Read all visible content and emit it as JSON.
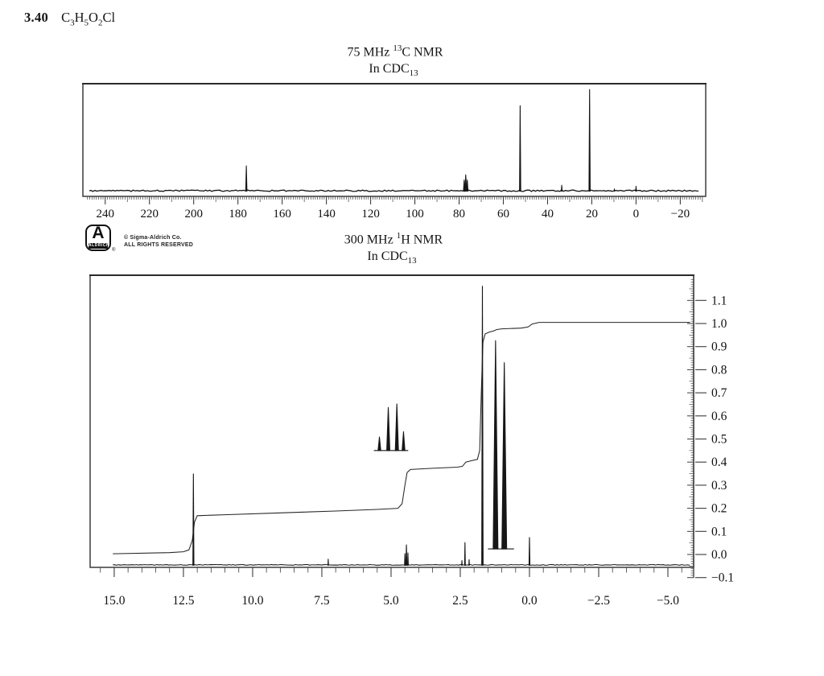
{
  "page": {
    "problem_number": "3.40",
    "formula_parts": [
      {
        "t": "C",
        "sub": "3"
      },
      {
        "t": "H",
        "sub": "5"
      },
      {
        "t": "O",
        "sub": "2"
      },
      {
        "t": "Cl",
        "sub": ""
      }
    ]
  },
  "logo": {
    "letter": "A",
    "name": "ALDRICH",
    "reg": "®",
    "credit_line1": "© Sigma-Aldrich Co.",
    "credit_line2": "ALL RIGHTS RESERVED"
  },
  "chart_data": [
    {
      "id": "c13",
      "type": "line",
      "title_parts": {
        "prefix": "75 MHz ",
        "sup": "13",
        "suffix": "C NMR"
      },
      "subtitle_parts": {
        "prefix": "In CDC",
        "sub": "13"
      },
      "x_unit": "ppm",
      "xlim": [
        250.1,
        -31.5
      ],
      "grid": false,
      "x_ticks": [
        {
          "v": 240,
          "label": "240"
        },
        {
          "v": 220,
          "label": "220"
        },
        {
          "v": 200,
          "label": "200"
        },
        {
          "v": 180,
          "label": "180"
        },
        {
          "v": 160,
          "label": "160"
        },
        {
          "v": 140,
          "label": "140"
        },
        {
          "v": 120,
          "label": "120"
        },
        {
          "v": 100,
          "label": "100"
        },
        {
          "v": 80,
          "label": "80"
        },
        {
          "v": 60,
          "label": "60"
        },
        {
          "v": 40,
          "label": "40"
        },
        {
          "v": 20,
          "label": "20"
        },
        {
          "v": 0,
          "label": "0"
        },
        {
          "v": -20,
          "label": "−20"
        }
      ],
      "baseline": {
        "from": 247.5,
        "to": -29.5,
        "level": 0.0
      },
      "peaks": [
        {
          "ppm": 176.2,
          "h": 0.245,
          "w": 2.6
        },
        {
          "ppm": 77.7,
          "h": 0.11,
          "w": 3.0
        },
        {
          "ppm": 77.0,
          "h": 0.16,
          "w": 3.2
        },
        {
          "ppm": 76.3,
          "h": 0.11,
          "w": 3.0
        },
        {
          "ppm": 52.4,
          "h": 0.82,
          "w": 2.6
        },
        {
          "ppm": 33.6,
          "h": 0.06,
          "w": 2.2
        },
        {
          "ppm": 21.0,
          "h": 0.975,
          "w": 2.6
        },
        {
          "ppm": 9.8,
          "h": 0.025,
          "w": 2.0
        },
        {
          "ppm": 0.0,
          "h": 0.05,
          "w": 2.2
        }
      ]
    },
    {
      "id": "h1",
      "type": "line",
      "title_parts": {
        "prefix": "300 MHz ",
        "sup": "1",
        "suffix": "H NMR"
      },
      "subtitle_parts": {
        "prefix": "In CDC",
        "sub": "13"
      },
      "x_unit": "ppm",
      "xlim": [
        15.87,
        -5.93
      ],
      "ylim": [
        -0.06,
        1.2
      ],
      "grid": false,
      "x_ticks": [
        {
          "v": 15.0,
          "label": "15.0"
        },
        {
          "v": 12.5,
          "label": "12.5"
        },
        {
          "v": 10.0,
          "label": "10.0"
        },
        {
          "v": 7.5,
          "label": "7.5"
        },
        {
          "v": 5.0,
          "label": "5.0"
        },
        {
          "v": 2.5,
          "label": "2.5"
        },
        {
          "v": 0.0,
          "label": "0.0"
        },
        {
          "v": -2.5,
          "label": "−2.5"
        },
        {
          "v": -5.0,
          "label": "−5.0"
        }
      ],
      "y_ticks_right": [
        {
          "v": 1.1,
          "label": "1.1"
        },
        {
          "v": 1.0,
          "label": "1.0"
        },
        {
          "v": 0.9,
          "label": "0.9"
        },
        {
          "v": 0.8,
          "label": "0.8"
        },
        {
          "v": 0.7,
          "label": "0.7"
        },
        {
          "v": 0.6,
          "label": "0.6"
        },
        {
          "v": 0.5,
          "label": "0.5"
        },
        {
          "v": 0.4,
          "label": "0.4"
        },
        {
          "v": 0.3,
          "label": "0.3"
        },
        {
          "v": 0.2,
          "label": "0.2"
        },
        {
          "v": 0.1,
          "label": "0.1"
        },
        {
          "v": 0.0,
          "label": "0.0"
        },
        {
          "v": -0.1,
          "label": "−0.1"
        }
      ],
      "baseline": {
        "from": 15.05,
        "to": -5.8,
        "level": -0.045
      },
      "peaks": [
        {
          "ppm": 12.14,
          "h": 0.397,
          "w": 2.4
        },
        {
          "ppm": 7.27,
          "h": 0.028,
          "w": 1.8
        },
        {
          "ppm": 4.5,
          "h": 0.052,
          "w": 2.0
        },
        {
          "ppm": 4.445,
          "h": 0.09,
          "w": 2.4
        },
        {
          "ppm": 4.39,
          "h": 0.055,
          "w": 2.0
        },
        {
          "ppm": 2.44,
          "h": 0.022,
          "w": 1.8
        },
        {
          "ppm": 2.33,
          "h": 0.1,
          "w": 2.0
        },
        {
          "ppm": 2.18,
          "h": 0.026,
          "w": 1.8
        },
        {
          "ppm": 1.7,
          "h": 1.21,
          "w": 2.8
        },
        {
          "ppm": 0.0,
          "h": 0.122,
          "w": 2.2
        }
      ],
      "insets": [
        {
          "name": "quartet-expansion",
          "base": 0.45,
          "pedestal": {
            "from": 5.62,
            "to": 4.38
          },
          "lines": [
            {
              "ppm": 5.42,
              "h": 0.062,
              "w": 4.6
            },
            {
              "ppm": 5.1,
              "h": 0.19,
              "w": 5.0
            },
            {
              "ppm": 4.79,
              "h": 0.205,
              "w": 5.0
            },
            {
              "ppm": 4.55,
              "h": 0.085,
              "w": 4.6
            }
          ]
        },
        {
          "name": "doublet-expansion",
          "base": 0.024,
          "pedestal": {
            "from": 1.5,
            "to": 0.56
          },
          "lines": [
            {
              "ppm": 1.225,
              "h": 0.905,
              "w": 7.0
            },
            {
              "ppm": 0.91,
              "h": 0.81,
              "w": 7.0
            }
          ]
        }
      ],
      "integral": [
        [
          15.05,
          0.003
        ],
        [
          13.0,
          0.008
        ],
        [
          12.5,
          0.012
        ],
        [
          12.3,
          0.02
        ],
        [
          12.18,
          0.06
        ],
        [
          12.1,
          0.14
        ],
        [
          12.0,
          0.168
        ],
        [
          11.5,
          0.17
        ],
        [
          11.0,
          0.172
        ],
        [
          9.0,
          0.18
        ],
        [
          7.0,
          0.188
        ],
        [
          5.5,
          0.195
        ],
        [
          4.75,
          0.2
        ],
        [
          4.6,
          0.22
        ],
        [
          4.5,
          0.3
        ],
        [
          4.42,
          0.355
        ],
        [
          4.3,
          0.368
        ],
        [
          3.5,
          0.373
        ],
        [
          2.6,
          0.378
        ],
        [
          2.42,
          0.382
        ],
        [
          2.3,
          0.4
        ],
        [
          2.1,
          0.406
        ],
        [
          1.88,
          0.412
        ],
        [
          1.8,
          0.45
        ],
        [
          1.74,
          0.7
        ],
        [
          1.68,
          0.92
        ],
        [
          1.6,
          0.955
        ],
        [
          1.45,
          0.963
        ],
        [
          1.3,
          0.968
        ],
        [
          1.18,
          0.974
        ],
        [
          1.0,
          0.977
        ],
        [
          0.3,
          0.98
        ],
        [
          0.05,
          0.985
        ],
        [
          -0.1,
          0.998
        ],
        [
          -0.35,
          1.005
        ],
        [
          -5.8,
          1.005
        ]
      ]
    }
  ]
}
